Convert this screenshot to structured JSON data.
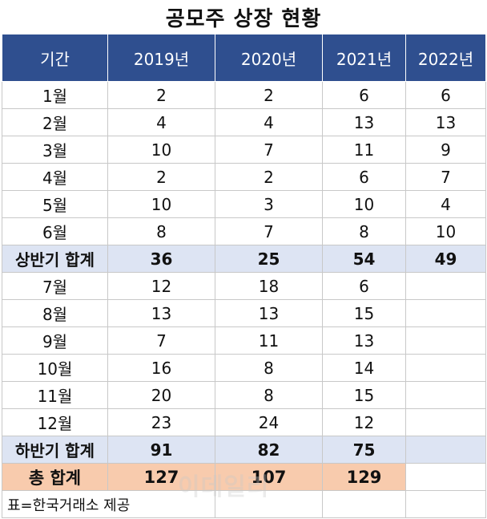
{
  "title": "공모주 상장 현황",
  "header": [
    "기간",
    "2019년",
    "2020년",
    "2021년",
    "2022년"
  ],
  "first_half": [
    {
      "period": "1월",
      "y2019": "2",
      "y2020": "2",
      "y2021": "6",
      "y2022": "6"
    },
    {
      "period": "2월",
      "y2019": "4",
      "y2020": "4",
      "y2021": "13",
      "y2022": "13"
    },
    {
      "period": "3월",
      "y2019": "10",
      "y2020": "7",
      "y2021": "11",
      "y2022": "9"
    },
    {
      "period": "4월",
      "y2019": "2",
      "y2020": "2",
      "y2021": "6",
      "y2022": "7"
    },
    {
      "period": "5월",
      "y2019": "10",
      "y2020": "3",
      "y2021": "10",
      "y2022": "4"
    },
    {
      "period": "6월",
      "y2019": "8",
      "y2020": "7",
      "y2021": "8",
      "y2022": "10"
    }
  ],
  "first_half_total": {
    "label": "상반기 합계",
    "y2019": "36",
    "y2020": "25",
    "y2021": "54",
    "y2022": "49"
  },
  "second_half": [
    {
      "period": "7월",
      "y2019": "12",
      "y2020": "18",
      "y2021": "6",
      "y2022": ""
    },
    {
      "period": "8월",
      "y2019": "13",
      "y2020": "13",
      "y2021": "15",
      "y2022": ""
    },
    {
      "period": "9월",
      "y2019": "7",
      "y2020": "11",
      "y2021": "13",
      "y2022": ""
    },
    {
      "period": "10월",
      "y2019": "16",
      "y2020": "8",
      "y2021": "14",
      "y2022": ""
    },
    {
      "period": "11월",
      "y2019": "20",
      "y2020": "8",
      "y2021": "15",
      "y2022": ""
    },
    {
      "period": "12월",
      "y2019": "23",
      "y2020": "24",
      "y2021": "12",
      "y2022": ""
    }
  ],
  "second_half_total": {
    "label": "하반기 합계",
    "y2019": "91",
    "y2020": "82",
    "y2021": "75",
    "y2022": ""
  },
  "grand_total": {
    "label": "총 합계",
    "y2019": "127",
    "y2020": "107",
    "y2021": "129",
    "y2022": ""
  },
  "source": "표=한국거래소 제공",
  "watermark": "이데일리",
  "colors": {
    "header_bg": "#2f4f8f",
    "subtotal_bg": "#dde4f3",
    "grandtotal_bg": "#f8cbad"
  }
}
